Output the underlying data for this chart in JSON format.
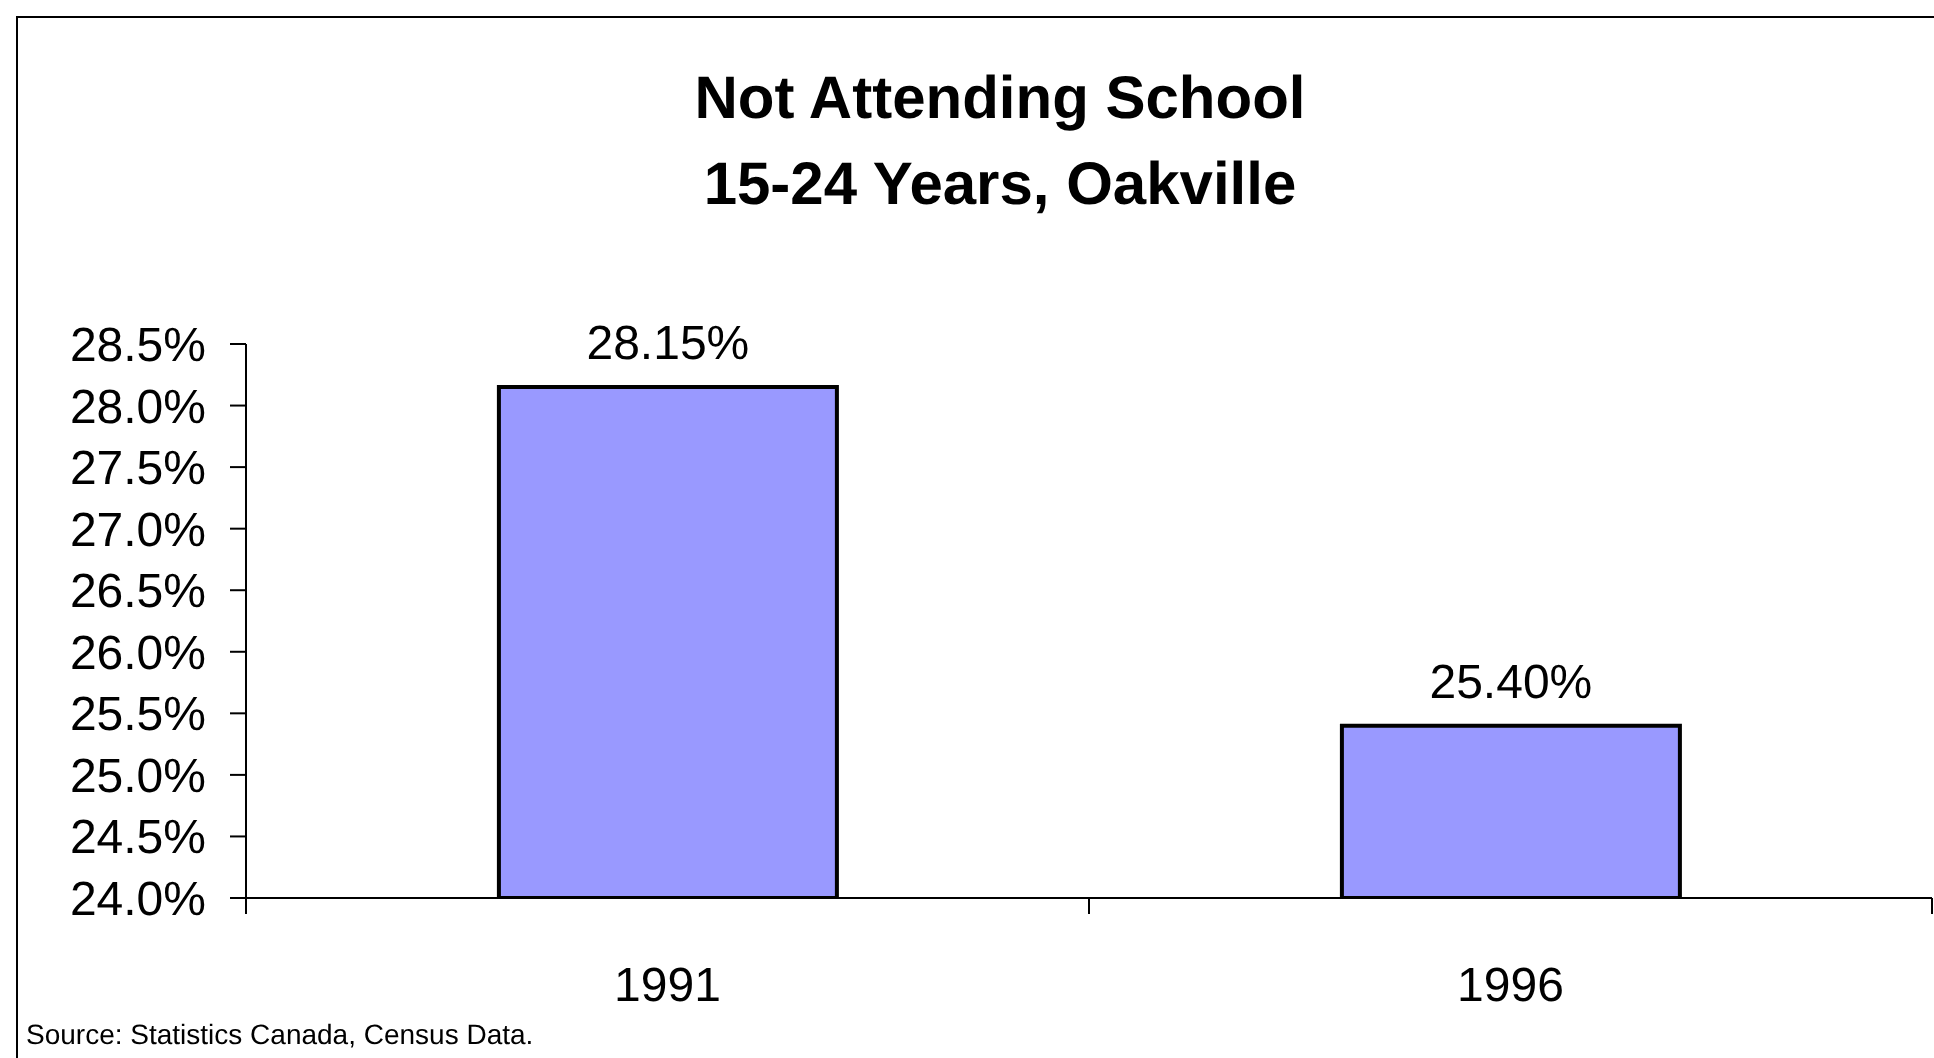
{
  "chart_data": {
    "type": "bar",
    "title": "Not Attending School",
    "subtitle": "15-24 Years, Oakville",
    "categories": [
      "1991",
      "1996"
    ],
    "values": [
      28.15,
      25.4
    ],
    "color": "#9999ff",
    "value_labels": [
      "28.15%",
      "25.40%"
    ],
    "ylim": [
      24,
      28.5
    ],
    "yticks": [
      {
        "value": 24,
        "label": "24.0%"
      },
      {
        "value": 24.5,
        "label": "24.5%"
      },
      {
        "value": 25,
        "label": "25.0%"
      },
      {
        "value": 25.5,
        "label": "25.5%"
      },
      {
        "value": 26,
        "label": "26.0%"
      },
      {
        "value": 26.5,
        "label": "26.5%"
      },
      {
        "value": 27,
        "label": "27.0%"
      },
      {
        "value": 27.5,
        "label": "27.5%"
      },
      {
        "value": 28,
        "label": "28.0%"
      },
      {
        "value": 28.5,
        "label": "28.5%"
      }
    ],
    "annotations": [
      "Source: Statistics Canada, Census Data."
    ]
  }
}
